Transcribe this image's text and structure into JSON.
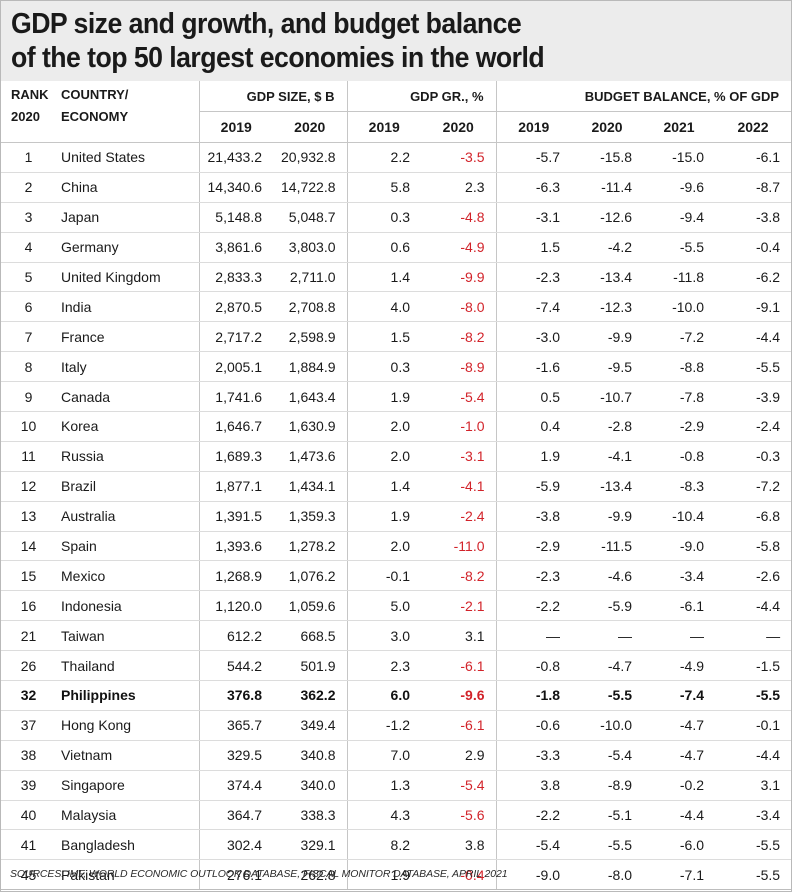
{
  "title": {
    "line1": "GDP size and growth, and budget balance",
    "line2": "of the top 50 largest economies in the world"
  },
  "headers": {
    "rank_line1": "RANK",
    "rank_line2": "2020",
    "country_line1": "COUNTRY/",
    "country_line2": "ECONOMY",
    "gdp_size": "GDP SIZE, $ B",
    "gdp_growth": "GDP GR., %",
    "budget_balance": "BUDGET BALANCE, % OF GDP",
    "gdp_years": [
      "2019",
      "2020"
    ],
    "growth_years": [
      "2019",
      "2020"
    ],
    "budget_years": [
      "2019",
      "2020",
      "2021",
      "2022"
    ]
  },
  "colors": {
    "negative_growth": "#d2232a",
    "title_background": "#ececec"
  },
  "rows": [
    {
      "rank": "1",
      "country": "United States",
      "gdp2019": "21,433.2",
      "gdp2020": "20,932.8",
      "gr2019": "2.2",
      "gr2020": "-3.5",
      "bb2019": "-5.7",
      "bb2020": "-15.8",
      "bb2021": "-15.0",
      "bb2022": "-6.1"
    },
    {
      "rank": "2",
      "country": "China",
      "gdp2019": "14,340.6",
      "gdp2020": "14,722.8",
      "gr2019": "5.8",
      "gr2020": "2.3",
      "bb2019": "-6.3",
      "bb2020": "-11.4",
      "bb2021": "-9.6",
      "bb2022": "-8.7"
    },
    {
      "rank": "3",
      "country": "Japan",
      "gdp2019": "5,148.8",
      "gdp2020": "5,048.7",
      "gr2019": "0.3",
      "gr2020": "-4.8",
      "bb2019": "-3.1",
      "bb2020": "-12.6",
      "bb2021": "-9.4",
      "bb2022": "-3.8"
    },
    {
      "rank": "4",
      "country": "Germany",
      "gdp2019": "3,861.6",
      "gdp2020": "3,803.0",
      "gr2019": "0.6",
      "gr2020": "-4.9",
      "bb2019": "1.5",
      "bb2020": "-4.2",
      "bb2021": "-5.5",
      "bb2022": "-0.4"
    },
    {
      "rank": "5",
      "country": "United Kingdom",
      "gdp2019": "2,833.3",
      "gdp2020": "2,711.0",
      "gr2019": "1.4",
      "gr2020": "-9.9",
      "bb2019": "-2.3",
      "bb2020": "-13.4",
      "bb2021": "-11.8",
      "bb2022": "-6.2"
    },
    {
      "rank": "6",
      "country": "India",
      "gdp2019": "2,870.5",
      "gdp2020": "2,708.8",
      "gr2019": "4.0",
      "gr2020": "-8.0",
      "bb2019": "-7.4",
      "bb2020": "-12.3",
      "bb2021": "-10.0",
      "bb2022": "-9.1"
    },
    {
      "rank": "7",
      "country": "France",
      "gdp2019": "2,717.2",
      "gdp2020": "2,598.9",
      "gr2019": "1.5",
      "gr2020": "-8.2",
      "bb2019": "-3.0",
      "bb2020": "-9.9",
      "bb2021": "-7.2",
      "bb2022": "-4.4"
    },
    {
      "rank": "8",
      "country": "Italy",
      "gdp2019": "2,005.1",
      "gdp2020": "1,884.9",
      "gr2019": "0.3",
      "gr2020": "-8.9",
      "bb2019": "-1.6",
      "bb2020": "-9.5",
      "bb2021": "-8.8",
      "bb2022": "-5.5"
    },
    {
      "rank": "9",
      "country": "Canada",
      "gdp2019": "1,741.6",
      "gdp2020": "1,643.4",
      "gr2019": "1.9",
      "gr2020": "-5.4",
      "bb2019": "0.5",
      "bb2020": "-10.7",
      "bb2021": "-7.8",
      "bb2022": "-3.9"
    },
    {
      "rank": "10",
      "country": "Korea",
      "gdp2019": "1,646.7",
      "gdp2020": "1,630.9",
      "gr2019": "2.0",
      "gr2020": "-1.0",
      "bb2019": "0.4",
      "bb2020": "-2.8",
      "bb2021": "-2.9",
      "bb2022": "-2.4"
    },
    {
      "rank": "11",
      "country": "Russia",
      "gdp2019": "1,689.3",
      "gdp2020": "1,473.6",
      "gr2019": "2.0",
      "gr2020": "-3.1",
      "bb2019": "1.9",
      "bb2020": "-4.1",
      "bb2021": "-0.8",
      "bb2022": "-0.3"
    },
    {
      "rank": "12",
      "country": "Brazil",
      "gdp2019": "1,877.1",
      "gdp2020": "1,434.1",
      "gr2019": "1.4",
      "gr2020": "-4.1",
      "bb2019": "-5.9",
      "bb2020": "-13.4",
      "bb2021": "-8.3",
      "bb2022": "-7.2"
    },
    {
      "rank": "13",
      "country": "Australia",
      "gdp2019": "1,391.5",
      "gdp2020": "1,359.3",
      "gr2019": "1.9",
      "gr2020": "-2.4",
      "bb2019": "-3.8",
      "bb2020": "-9.9",
      "bb2021": "-10.4",
      "bb2022": "-6.8"
    },
    {
      "rank": "14",
      "country": "Spain",
      "gdp2019": "1,393.6",
      "gdp2020": "1,278.2",
      "gr2019": "2.0",
      "gr2020": "-11.0",
      "bb2019": "-2.9",
      "bb2020": "-11.5",
      "bb2021": "-9.0",
      "bb2022": "-5.8"
    },
    {
      "rank": "15",
      "country": "Mexico",
      "gdp2019": "1,268.9",
      "gdp2020": "1,076.2",
      "gr2019": "-0.1",
      "gr2020": "-8.2",
      "bb2019": "-2.3",
      "bb2020": "-4.6",
      "bb2021": "-3.4",
      "bb2022": "-2.6"
    },
    {
      "rank": "16",
      "country": "Indonesia",
      "gdp2019": "1,120.0",
      "gdp2020": "1,059.6",
      "gr2019": "5.0",
      "gr2020": "-2.1",
      "bb2019": "-2.2",
      "bb2020": "-5.9",
      "bb2021": "-6.1",
      "bb2022": "-4.4"
    },
    {
      "rank": "21",
      "country": "Taiwan",
      "gdp2019": "612.2",
      "gdp2020": "668.5",
      "gr2019": "3.0",
      "gr2020": "3.1",
      "bb2019": "—",
      "bb2020": "—",
      "bb2021": "—",
      "bb2022": "—"
    },
    {
      "rank": "26",
      "country": "Thailand",
      "gdp2019": "544.2",
      "gdp2020": "501.9",
      "gr2019": "2.3",
      "gr2020": "-6.1",
      "bb2019": "-0.8",
      "bb2020": "-4.7",
      "bb2021": "-4.9",
      "bb2022": "-1.5"
    },
    {
      "rank": "32",
      "country": "Philippines",
      "gdp2019": "376.8",
      "gdp2020": "362.2",
      "gr2019": "6.0",
      "gr2020": "-9.6",
      "bb2019": "-1.8",
      "bb2020": "-5.5",
      "bb2021": "-7.4",
      "bb2022": "-5.5",
      "highlight": true
    },
    {
      "rank": "37",
      "country": "Hong Kong",
      "gdp2019": "365.7",
      "gdp2020": "349.4",
      "gr2019": "-1.2",
      "gr2020": "-6.1",
      "bb2019": "-0.6",
      "bb2020": "-10.0",
      "bb2021": "-4.7",
      "bb2022": "-0.1"
    },
    {
      "rank": "38",
      "country": "Vietnam",
      "gdp2019": "329.5",
      "gdp2020": "340.8",
      "gr2019": "7.0",
      "gr2020": "2.9",
      "bb2019": "-3.3",
      "bb2020": "-5.4",
      "bb2021": "-4.7",
      "bb2022": "-4.4"
    },
    {
      "rank": "39",
      "country": "Singapore",
      "gdp2019": "374.4",
      "gdp2020": "340.0",
      "gr2019": "1.3",
      "gr2020": "-5.4",
      "bb2019": "3.8",
      "bb2020": "-8.9",
      "bb2021": "-0.2",
      "bb2022": "3.1"
    },
    {
      "rank": "40",
      "country": "Malaysia",
      "gdp2019": "364.7",
      "gdp2020": "338.3",
      "gr2019": "4.3",
      "gr2020": "-5.6",
      "bb2019": "-2.2",
      "bb2020": "-5.1",
      "bb2021": "-4.4",
      "bb2022": "-3.4"
    },
    {
      "rank": "41",
      "country": "Bangladesh",
      "gdp2019": "302.4",
      "gdp2020": "329.1",
      "gr2019": "8.2",
      "gr2020": "3.8",
      "bb2019": "-5.4",
      "bb2020": "-5.5",
      "bb2021": "-6.0",
      "bb2022": "-5.5"
    },
    {
      "rank": "45",
      "country": "Pakistan",
      "gdp2019": "276.1",
      "gdp2020": "262.8",
      "gr2019": "1.9",
      "gr2020": "-0.4",
      "bb2019": "-9.0",
      "bb2020": "-8.0",
      "bb2021": "-7.1",
      "bb2022": "-5.5"
    }
  ],
  "sources": "SOURCES: IMF, WORLD ECONOMIC OUTLOOK DATABASE, FISCAL MONITOR DATABASE, APRIL 2021"
}
